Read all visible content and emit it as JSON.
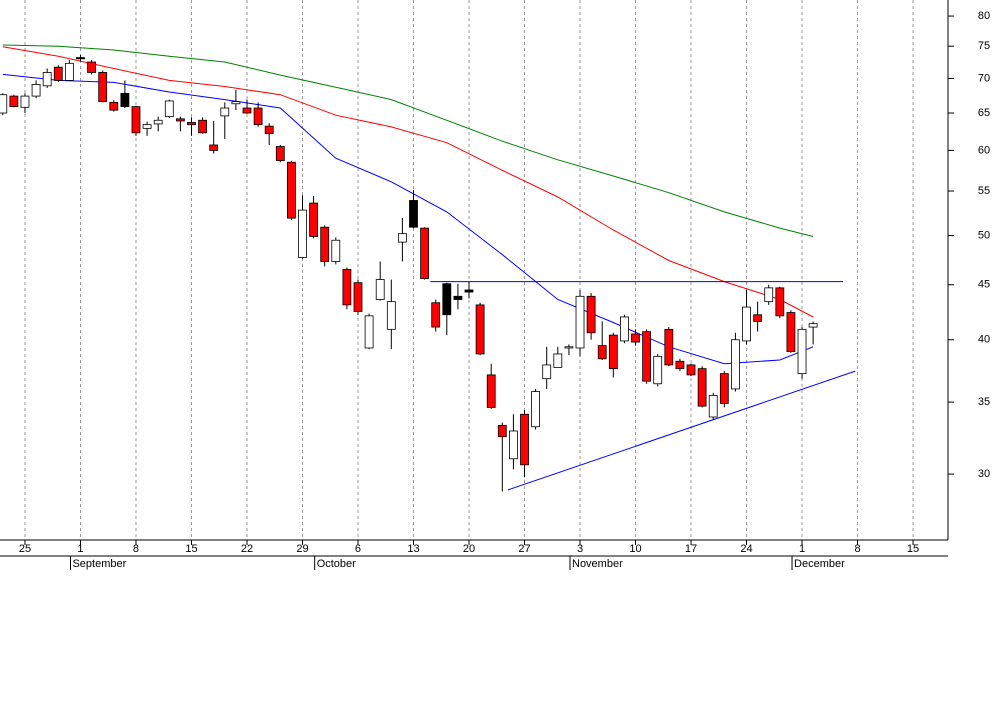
{
  "chart_data": {
    "type": "candlestick",
    "log_scale": true,
    "grid": true,
    "up_color": "#ffffff",
    "down_color": "#ff0000",
    "down_color_above_prev_close": "#000000",
    "x": [
      -2,
      -1,
      0,
      1,
      2,
      3,
      4,
      5,
      6,
      7,
      8,
      9,
      10,
      11,
      12,
      13,
      14,
      15,
      16,
      17,
      18,
      19,
      20,
      21,
      22,
      23,
      24,
      25,
      26,
      27,
      28,
      29,
      30,
      31,
      32,
      33,
      34,
      35,
      36,
      37,
      38,
      39,
      40,
      41,
      42,
      43,
      44,
      45,
      46,
      47,
      48,
      49,
      50,
      51,
      52,
      53,
      54,
      55,
      56,
      57,
      58,
      59,
      60,
      61,
      62,
      63,
      64,
      65,
      66,
      67,
      68,
      69,
      70,
      71
    ],
    "open": [
      65,
      67.4,
      65.8,
      67.4,
      68.9,
      71.7,
      69.7,
      73.2,
      72.5,
      70.9,
      66.5,
      67.8,
      65.9,
      62.9,
      63.5,
      64.5,
      64.2,
      63.7,
      64,
      60.7,
      64.6,
      66.3,
      65.7,
      65.7,
      63.2,
      60.5,
      58.5,
      47.7,
      53.6,
      50.9,
      47.3,
      46.5,
      45.2,
      39.3,
      43.6,
      40.9,
      49.3,
      53.9,
      50.8,
      43.3,
      45.1,
      43.9,
      44.5,
      43.1,
      37.1,
      33.3,
      31,
      34.1,
      33.2,
      36.8,
      37.7,
      39.3,
      39.3,
      43.9,
      39.5,
      40.4,
      39.9,
      40.5,
      40.7,
      36.4,
      40.9,
      38.2,
      37.9,
      37.6,
      33.9,
      37.2,
      36,
      39.9,
      42.2,
      43.4,
      44.7,
      42.4,
      37.2,
      41.1
    ],
    "high": [
      67.8,
      67.6,
      67.8,
      69.7,
      71.5,
      72,
      72.8,
      73.6,
      72.8,
      71.2,
      66.8,
      69.7,
      66,
      63.8,
      64.5,
      66.9,
      64.5,
      64.4,
      64.4,
      63.9,
      66.5,
      68.3,
      66.9,
      66.5,
      63.6,
      60.7,
      58.7,
      54.5,
      54.4,
      51.1,
      49.8,
      46.7,
      45.5,
      42.3,
      47.3,
      45.5,
      51.9,
      55.1,
      50.9,
      43.6,
      45.2,
      45.1,
      45.3,
      43.3,
      38,
      33.5,
      34.1,
      34.4,
      36,
      39.4,
      39.4,
      39.6,
      44.5,
      44.2,
      41.6,
      40.6,
      42.2,
      40.9,
      40.9,
      38.8,
      41.1,
      38.4,
      38,
      37.8,
      35.7,
      37.4,
      40.6,
      44.5,
      43.4,
      45,
      44.8,
      42.6,
      41.1,
      41.6
    ],
    "low": [
      64.7,
      65.8,
      65,
      67.1,
      68.6,
      69.5,
      69.6,
      72.6,
      70.6,
      66.5,
      65.2,
      65.7,
      61.9,
      61.9,
      62.5,
      64.3,
      62.5,
      61.9,
      62.2,
      59.6,
      61.5,
      65.4,
      64.9,
      63.1,
      60.7,
      58.5,
      51.7,
      47.6,
      49.7,
      46.8,
      47,
      42.7,
      42.2,
      39.2,
      43.5,
      39.2,
      47.3,
      50.8,
      45.5,
      40.7,
      40.4,
      42.7,
      43.7,
      38.7,
      34.5,
      28.9,
      30.3,
      29.8,
      33,
      36,
      37.7,
      38.7,
      38.6,
      40,
      38.3,
      36.9,
      39.7,
      39.5,
      36.4,
      36.2,
      37.8,
      37.4,
      37,
      34.6,
      33.7,
      34.6,
      35.8,
      39.6,
      40.7,
      43.1,
      41.9,
      38.9,
      36.8,
      39.6
    ],
    "close": [
      67.6,
      65.9,
      67.4,
      69.1,
      70.9,
      69.7,
      72.3,
      73.0,
      70.9,
      66.6,
      65.4,
      65.9,
      62.3,
      63.4,
      64.0,
      66.7,
      63.9,
      63.4,
      62.3,
      60.0,
      65.7,
      66.6,
      65.0,
      63.4,
      62.2,
      58.7,
      51.9,
      52.8,
      49.9,
      47.3,
      49.5,
      43.1,
      42.5,
      42.1,
      45.5,
      43.4,
      50.2,
      50.9,
      45.6,
      41.1,
      42.2,
      43.6,
      44.3,
      38.8,
      34.6,
      32.5,
      32.9,
      30.6,
      35.8,
      37.9,
      38.8,
      39.4,
      43.9,
      40.6,
      38.4,
      37.6,
      42.0,
      39.8,
      36.6,
      38.6,
      37.9,
      37.6,
      37.1,
      34.7,
      35.5,
      34.9,
      40.0,
      42.9,
      41.6,
      44.7,
      42.1,
      39.0,
      40.9,
      41.4
    ],
    "lines": [
      {
        "color": "#0000ff",
        "x": [
          -2,
          3,
          8,
          13,
          18,
          23,
          28,
          33,
          38,
          43,
          48,
          53,
          58,
          63,
          68,
          71
        ],
        "values": [
          70.6,
          69.7,
          69.4,
          68,
          66.9,
          65.7,
          59,
          56.1,
          52.6,
          48,
          43.6,
          41.5,
          39.4,
          38,
          38.3,
          39.4
        ]
      },
      {
        "color": "#ff0000",
        "x": [
          -2,
          3,
          8,
          13,
          18,
          23,
          28,
          33,
          38,
          43,
          48,
          53,
          58,
          63,
          68,
          71
        ],
        "values": [
          74.9,
          73.4,
          71.5,
          69.7,
          68.8,
          67.6,
          64.7,
          63.1,
          61,
          57.5,
          54.3,
          50.6,
          47.4,
          45.3,
          43.6,
          42
        ]
      },
      {
        "color": "#008000",
        "x": [
          -2,
          3,
          8,
          13,
          18,
          23,
          28,
          33,
          38,
          43,
          48,
          53,
          58,
          63,
          68,
          71
        ],
        "values": [
          75.2,
          75,
          74.4,
          73.4,
          72.5,
          70.5,
          68.7,
          66.9,
          64,
          61.2,
          58.8,
          56.8,
          54.8,
          52.6,
          50.8,
          49.9
        ]
      }
    ],
    "trendlines": [
      {
        "color": "#0000ff",
        "x": [
          36.5,
          73.7
        ],
        "values": [
          45.3,
          45.3
        ]
      },
      {
        "color": "#0000ff",
        "x": [
          43.5,
          74.8
        ],
        "values": [
          29,
          37.4
        ]
      }
    ],
    "xlim": [
      -2.25,
      83.15
    ],
    "xticks": [
      {
        "value": 0,
        "label": "25"
      },
      {
        "value": 5,
        "label": "1"
      },
      {
        "value": 10,
        "label": "8"
      },
      {
        "value": 15,
        "label": "15"
      },
      {
        "value": 20,
        "label": "22"
      },
      {
        "value": 25,
        "label": "29"
      },
      {
        "value": 30,
        "label": "6"
      },
      {
        "value": 35,
        "label": "13"
      },
      {
        "value": 40,
        "label": "20"
      },
      {
        "value": 45,
        "label": "27"
      },
      {
        "value": 50,
        "label": "3"
      },
      {
        "value": 55,
        "label": "10"
      },
      {
        "value": 60,
        "label": "17"
      },
      {
        "value": 65,
        "label": "24"
      },
      {
        "value": 70,
        "label": "1"
      },
      {
        "value": 75,
        "label": "8"
      },
      {
        "value": 80,
        "label": "15"
      }
    ],
    "month_labels": [
      {
        "value": 5,
        "label": "September"
      },
      {
        "value": 27,
        "label": "October"
      },
      {
        "value": 50,
        "label": "November"
      },
      {
        "value": 70,
        "label": "December"
      }
    ],
    "ylim": [
      26.05,
      82.8
    ],
    "yticks": [
      30,
      35,
      40,
      45,
      50,
      55,
      60,
      65,
      70,
      75,
      80
    ]
  }
}
